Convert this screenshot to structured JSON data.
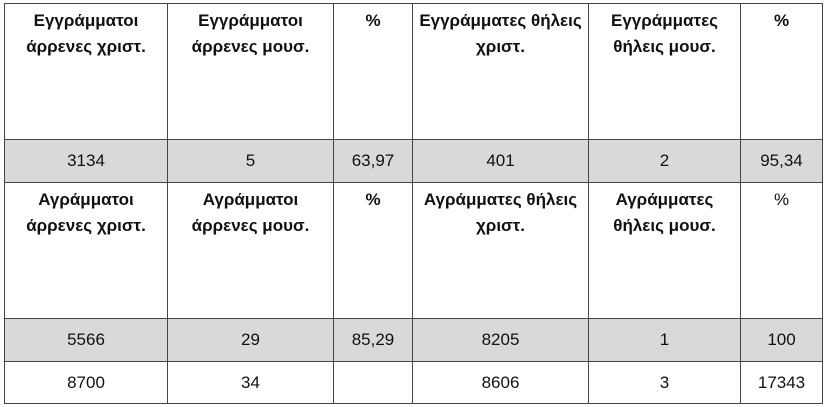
{
  "header_row_1": [
    "Εγγράμματοι άρρενες χριστ.",
    "Εγγράμματοι άρρενες μουσ.",
    "%",
    "Εγγράμματες θήλεις χριστ.",
    "Εγγράμματες θήλεις μουσ.",
    "%"
  ],
  "data_row_1": [
    "3134",
    "5",
    "63,97",
    "401",
    "2",
    "95,34"
  ],
  "header_row_2": [
    "Αγράμματοι άρρενες χριστ.",
    "Αγράμματοι άρρενες μουσ.",
    "%",
    "Αγράμματες θήλεις χριστ.",
    "Αγράμματες θήλεις μουσ.",
    "%"
  ],
  "data_row_2": [
    "5566",
    "29",
    "85,29",
    "8205",
    "1",
    "100"
  ],
  "totals_row": [
    "8700",
    "34",
    "",
    "8606",
    "3",
    "17343"
  ]
}
